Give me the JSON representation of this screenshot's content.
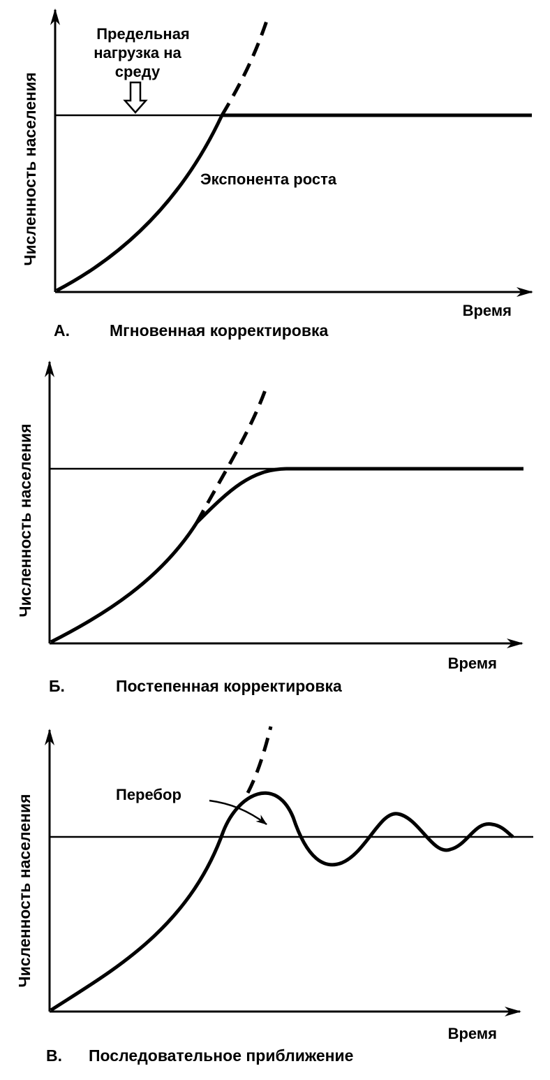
{
  "panels": [
    {
      "letter": "А.",
      "title": "Мгновенная корректировка",
      "y_axis_label": "Численность населения",
      "x_axis_label": "Время",
      "annotations": {
        "capacity_label_lines": [
          "Предельная",
          "нагрузка на",
          "среду"
        ],
        "growth_label": "Экспонента роста"
      }
    },
    {
      "letter": "Б.",
      "title": "Постепенная корректировка",
      "y_axis_label": "Численность населения",
      "x_axis_label": "Время"
    },
    {
      "letter": "В.",
      "title": "Последовательное приближение",
      "y_axis_label": "Численность населения",
      "x_axis_label": "Время",
      "annotations": {
        "overshoot_label": "Перебор"
      }
    }
  ],
  "colors": {
    "ink": "#000000",
    "background": "#ffffff"
  }
}
